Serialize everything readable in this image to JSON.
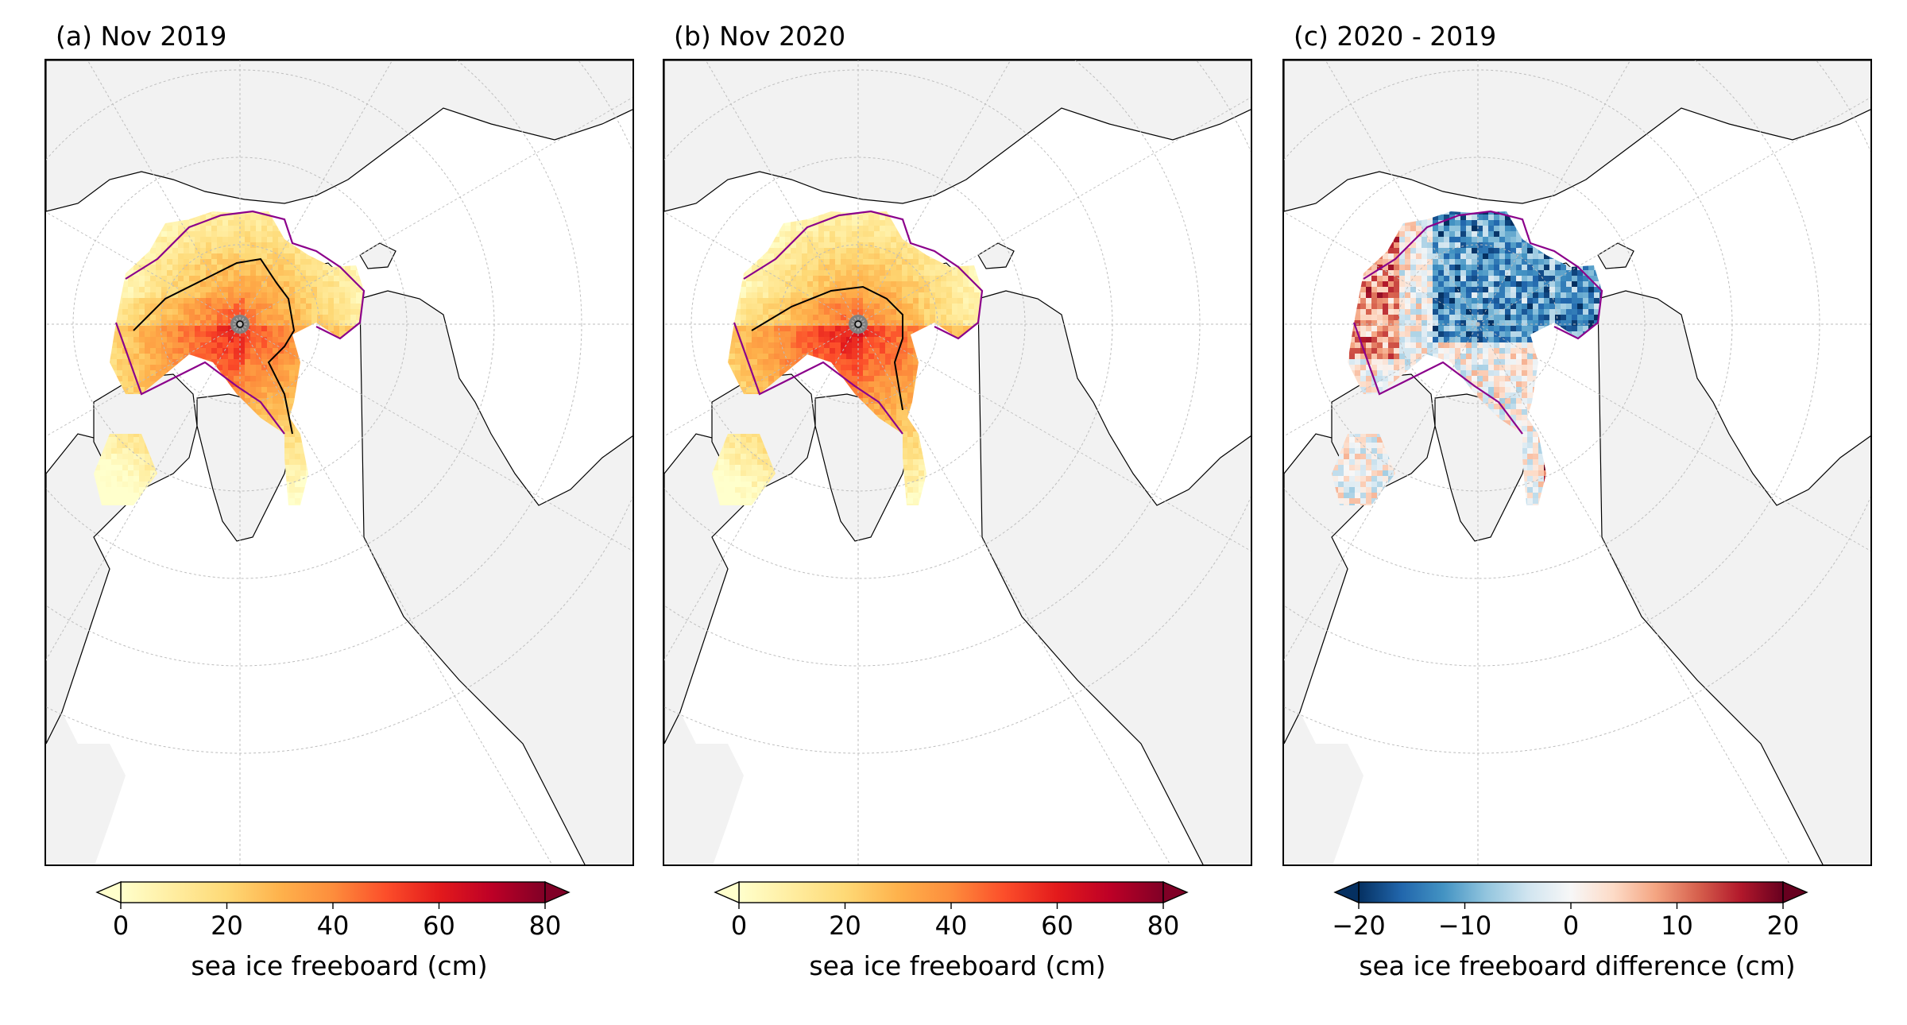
{
  "panels": [
    {
      "id": "a",
      "title": "(a) Nov 2019",
      "kind": "freeboard",
      "colorbar": {
        "ticks": [
          "0",
          "20",
          "40",
          "60",
          "80"
        ],
        "label": "sea ice freeboard (cm)",
        "range": [
          0,
          80
        ],
        "extend": "both"
      }
    },
    {
      "id": "b",
      "title": "(b) Nov 2020",
      "kind": "freeboard",
      "colorbar": {
        "ticks": [
          "0",
          "20",
          "40",
          "60",
          "80"
        ],
        "label": "sea ice freeboard (cm)",
        "range": [
          0,
          80
        ],
        "extend": "both"
      }
    },
    {
      "id": "c",
      "title": "(c) 2020 - 2019",
      "kind": "difference",
      "colorbar": {
        "ticks": [
          "−20",
          "−10",
          "0",
          "10",
          "20"
        ],
        "label": "sea ice freeboard difference (cm)",
        "range": [
          -20,
          20
        ],
        "extend": "both"
      }
    }
  ],
  "colors": {
    "ocean": "#ffffff",
    "land": "#f2f2f2",
    "coastline": "#000000",
    "gridline": "#bdbdbd",
    "ice_edge_contour": "#8b008b",
    "pole_hole": "#808080",
    "freeboard_cmap": [
      "#ffffcc",
      "#ffeda0",
      "#fed976",
      "#feb24c",
      "#fd8d3c",
      "#fc4e2a",
      "#e31a1c",
      "#bd0026",
      "#800026"
    ],
    "difference_cmap": [
      "#053061",
      "#2166ac",
      "#4393c3",
      "#92c5de",
      "#d1e5f0",
      "#f7f7f7",
      "#fddbc7",
      "#f4a582",
      "#d6604d",
      "#b2182b",
      "#67001f"
    ]
  }
}
